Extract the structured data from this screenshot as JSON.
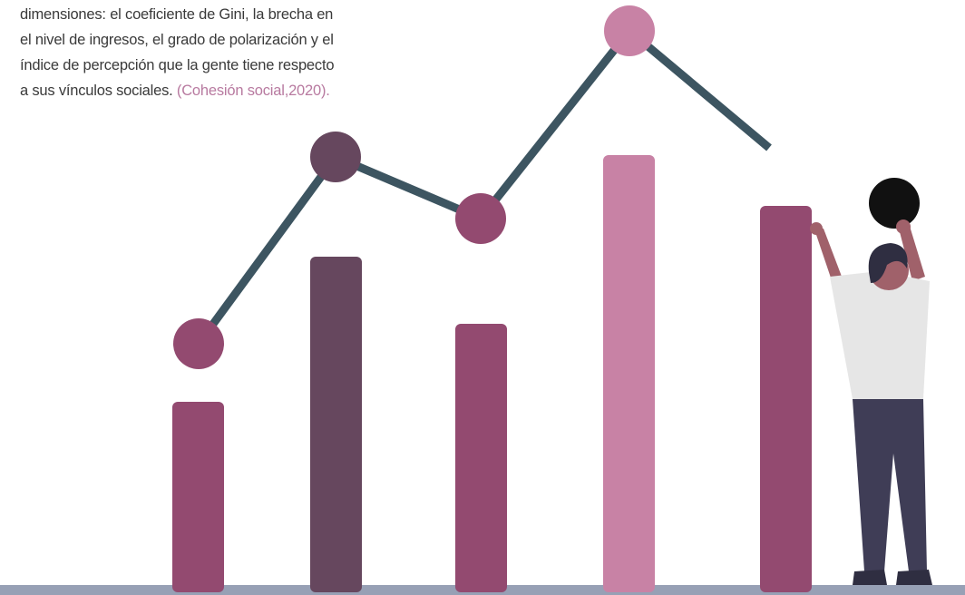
{
  "paragraph": {
    "lines": [
      "dimensiones: el coeficiente de Gini, la brecha en",
      "el nivel de ingresos, el grado de polarización y el",
      "índice de percepción que la gente tiene respecto",
      "a sus vínculos sociales. "
    ],
    "citation": "(Cohesión social,2020)."
  }
}
